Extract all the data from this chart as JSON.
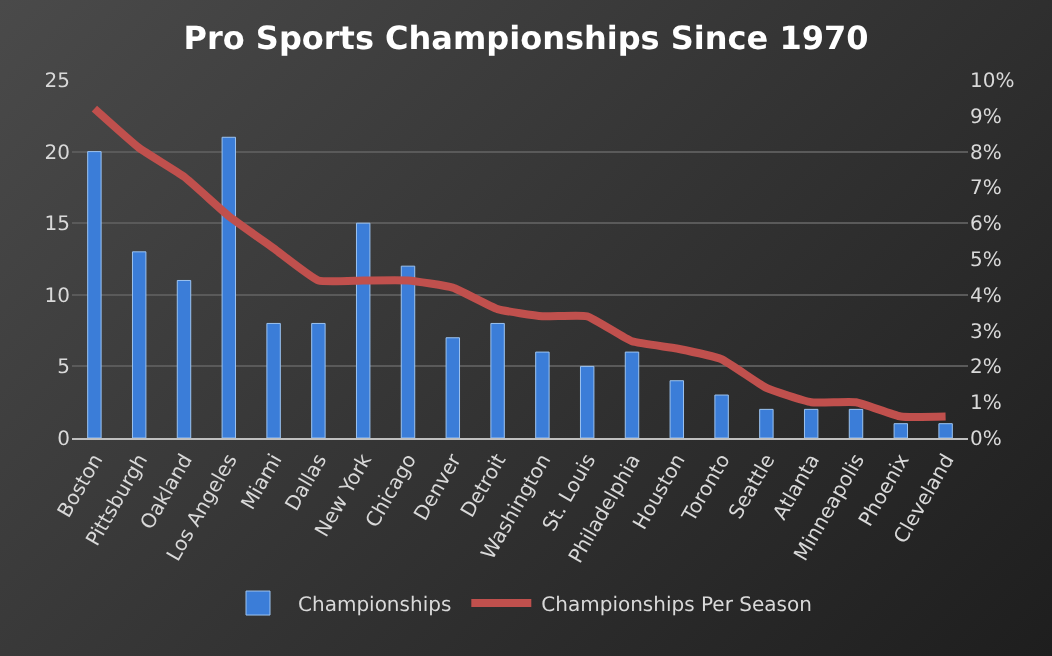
{
  "chart_data": {
    "type": "bar",
    "title": "Pro Sports Championships Since 1970",
    "categories": [
      "Boston",
      "Pittsburgh",
      "Oakland",
      "Los Angeles",
      "Miami",
      "Dallas",
      "New York",
      "Chicago",
      "Denver",
      "Detroit",
      "Washington",
      "St. Louis",
      "Philadelphia",
      "Houston",
      "Toronto",
      "Seattle",
      "Atlanta",
      "Minneapolis",
      "Phoenix",
      "Cleveland"
    ],
    "series": [
      {
        "name": "Championships",
        "color": "#3b7dd8",
        "values": [
          20,
          13,
          11,
          21,
          8,
          8,
          15,
          12,
          7,
          8,
          6,
          5,
          6,
          4,
          3,
          2,
          2,
          2,
          1,
          1
        ]
      },
      {
        "name": "Championships Per Season",
        "type": "line",
        "axis": "y2",
        "color": "#c0504d",
        "values": [
          9.2,
          8.1,
          7.3,
          6.2,
          5.3,
          4.4,
          4.4,
          4.4,
          4.2,
          3.6,
          3.4,
          3.4,
          2.7,
          2.5,
          2.2,
          1.4,
          1.0,
          1.0,
          0.6,
          0.6
        ]
      }
    ],
    "ylim": [
      0,
      25
    ],
    "yticks": [
      0,
      5,
      10,
      15,
      20,
      25
    ],
    "y2lim": [
      0,
      10
    ],
    "y2ticks": [
      {
        "value": 0,
        "label": "0%"
      },
      {
        "value": 1,
        "label": "1%"
      },
      {
        "value": 2,
        "label": "2%"
      },
      {
        "value": 3,
        "label": "3%"
      },
      {
        "value": 4,
        "label": "4%"
      },
      {
        "value": 5,
        "label": "5%"
      },
      {
        "value": 6,
        "label": "6%"
      },
      {
        "value": 7,
        "label": "7%"
      },
      {
        "value": 8,
        "label": "8%"
      },
      {
        "value": 9,
        "label": "9%"
      },
      {
        "value": 10,
        "label": "10%"
      }
    ],
    "grid": "y",
    "legend": "bottom",
    "marker": "none",
    "line_style": "solid"
  }
}
